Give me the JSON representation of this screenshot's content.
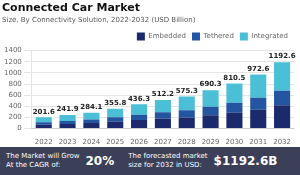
{
  "chart_data": {
    "type": "bar",
    "stacked": true,
    "title": "Connected Car Market",
    "subtitle": "Size, By Connectivity Solution, 2022-2032 (USD Billion)",
    "categories": [
      "2022",
      "2023",
      "2024",
      "2025",
      "2026",
      "2027",
      "2028",
      "2029",
      "2030",
      "2031",
      "2032"
    ],
    "series": [
      {
        "name": "Embedded",
        "color": "#1a2a6c",
        "values": [
          70.56,
          84.665,
          99.435,
          124.53,
          152.705,
          179.27,
          201.355,
          241.605,
          283.675,
          340.41,
          417.41
        ]
      },
      {
        "name": "Tethered",
        "color": "#2355a0",
        "values": [
          44.352,
          53.218,
          62.502,
          78.276,
          95.986,
          112.684,
          126.566,
          151.866,
          178.31,
          213.972,
          262.372
        ]
      },
      {
        "name": "Integrated",
        "color": "#4bbfd6",
        "values": [
          86.688,
          104.017,
          122.163,
          152.994,
          187.609,
          220.246,
          247.379,
          296.829,
          348.515,
          418.218,
          512.818
        ]
      }
    ],
    "totals": [
      201.6,
      241.9,
      284.1,
      355.8,
      436.3,
      512.2,
      575.3,
      690.3,
      810.5,
      972.6,
      1192.6
    ],
    "ylim": [
      0,
      1400
    ],
    "yticks": [
      0,
      200,
      400,
      600,
      800,
      1000,
      1200,
      1400
    ],
    "grid": true,
    "legend": "upper right",
    "annotations": [
      "The Market will Grow\nAt the CAGR of:",
      "20%",
      "The forecasted market\nsize for 2032 in USD:",
      "$1192.6B"
    ]
  }
}
